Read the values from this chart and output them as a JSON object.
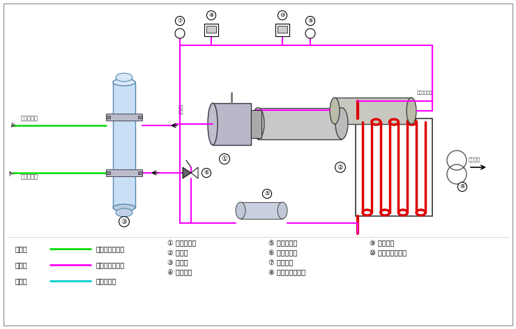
{
  "bg_color": "#ffffff",
  "border_color": "#aaaaaa",
  "mg": "#ff00ff",
  "gr": "#00dd00",
  "cy": "#00cccc",
  "rd": "#dd0000",
  "lw": 1.5,
  "legend": [
    {
      "color": "#00dd00",
      "label": "绿色线",
      "desc": "载冷剂循环回路",
      "row": 0
    },
    {
      "color": "#ff00ff",
      "label": "红色线",
      "desc": "制冷剂循环回路",
      "row": 1
    },
    {
      "color": "#00cccc",
      "label": "蓝色线",
      "desc": "水循环回路",
      "row": 2
    }
  ],
  "items_col1": [
    [
      "①",
      "螺杆压缩机"
    ],
    [
      "②",
      "冷凝器"
    ],
    [
      "③",
      "蒸发器"
    ],
    [
      "④",
      "冷却风扇"
    ]
  ],
  "items_col2": [
    [
      "⑤",
      "干燥过滤器"
    ],
    [
      "⑥",
      "供液膨胀阀"
    ],
    [
      "⑦",
      "低压力表"
    ],
    [
      "⑧",
      "低压压力控制器"
    ]
  ],
  "items_col3": [
    [
      "⑨",
      "高压力表"
    ],
    [
      "⑩",
      "高压压力控制器"
    ]
  ]
}
